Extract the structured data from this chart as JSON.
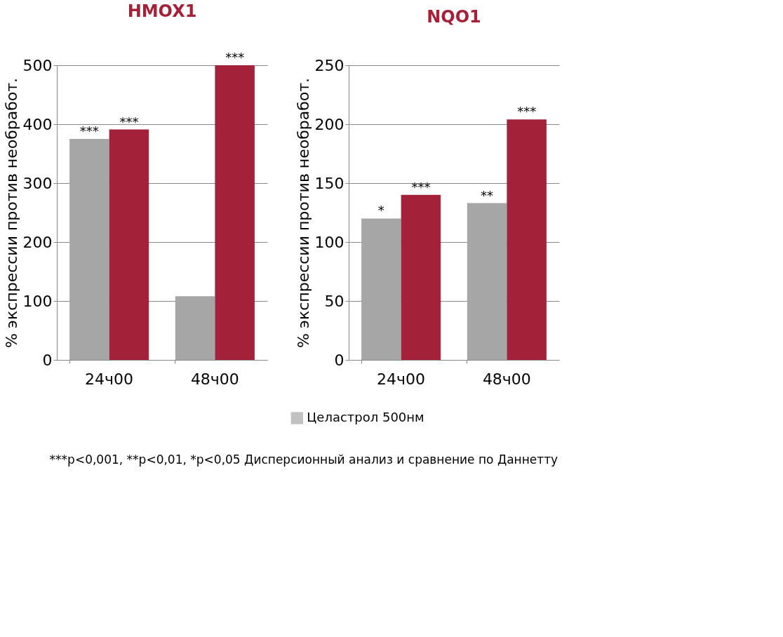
{
  "chart_data": [
    {
      "type": "bar",
      "title": "HMOX1",
      "ylabel": "% экспрессии против необработ.",
      "categories": [
        "24ч00",
        "48ч00"
      ],
      "ylim": [
        0,
        500
      ],
      "yticks": [
        0,
        100,
        200,
        300,
        400,
        500
      ],
      "grid": "y",
      "legend": "bottom",
      "series": [
        {
          "name": "Целастрол 500нм",
          "color": "#a6a6a6",
          "values": [
            375,
            108
          ],
          "value_labels": [
            "***",
            null
          ]
        },
        {
          "color": "#a3223a",
          "values": [
            391,
            500
          ],
          "value_labels": [
            "***",
            "***"
          ]
        }
      ],
      "annotations": [
        "***p<0,001, **p<0,01, *p<0,05 Дисперсионный анализ и сравнение по Даннетту"
      ]
    },
    {
      "type": "bar",
      "title": "NQO1",
      "ylabel": "% экспрессии против необработ.",
      "categories": [
        "24ч00",
        "48ч00"
      ],
      "ylim": [
        0,
        250
      ],
      "yticks": [
        0,
        50,
        100,
        150,
        200,
        250
      ],
      "grid": "y",
      "series": [
        {
          "color": "#a6a6a6",
          "values": [
            120,
            133
          ],
          "value_labels": [
            "*",
            "**"
          ]
        },
        {
          "color": "#a3223a",
          "values": [
            140,
            204
          ],
          "value_labels": [
            "***",
            "***"
          ]
        }
      ]
    }
  ]
}
